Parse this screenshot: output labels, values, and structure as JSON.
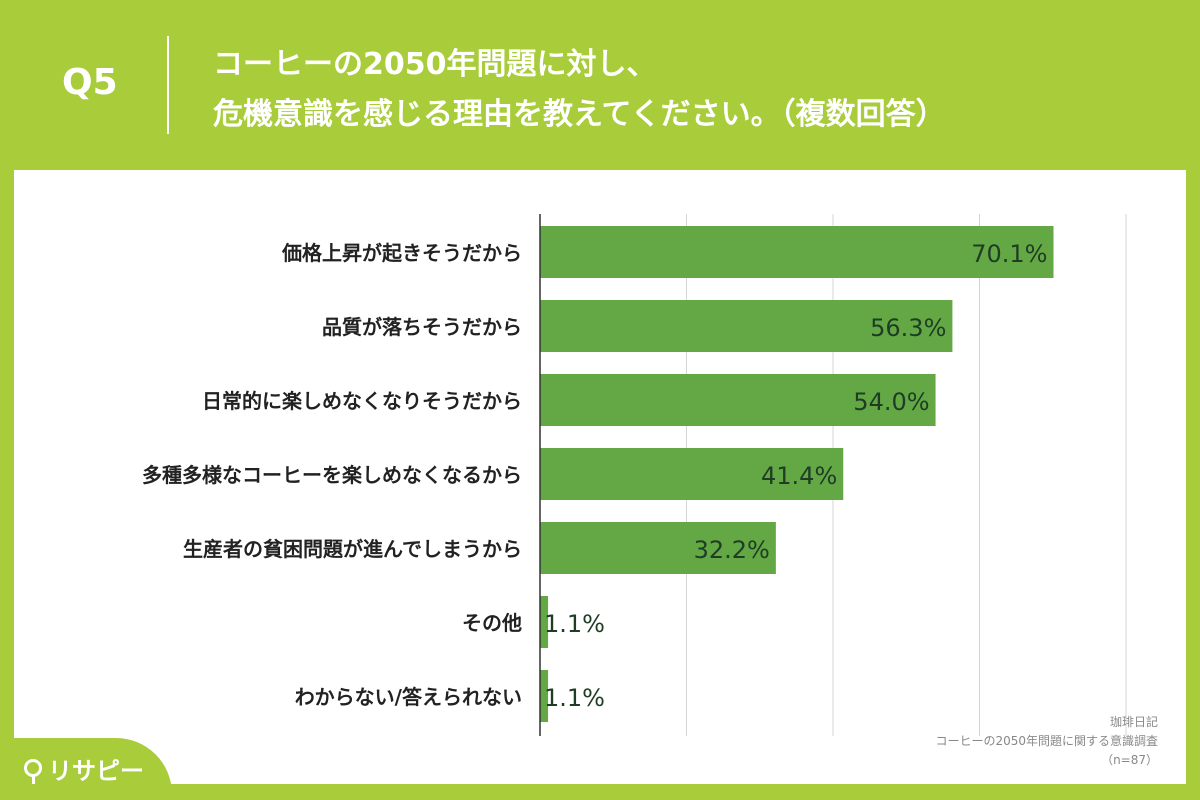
{
  "header": {
    "q_number": "Q5",
    "question_line1": "コーヒーの2050年問題に対し、",
    "question_line2": "危機意識を感じる理由を教えてください。（複数回答）"
  },
  "chart_data": {
    "type": "bar",
    "orientation": "horizontal",
    "categories": [
      "価格上昇が起きそうだから",
      "品質が落ちそうだから",
      "日常的に楽しめなくなりそうだから",
      "多種多様なコーヒーを楽しめなくなるから",
      "生産者の貧困問題が進んでしまうから",
      "その他",
      "わからない/答えられない"
    ],
    "values": [
      70.1,
      56.3,
      54.0,
      41.4,
      32.2,
      1.1,
      1.1
    ],
    "value_labels": [
      "70.1%",
      "56.3%",
      "54.0%",
      "41.4%",
      "32.2%",
      "1.1%",
      "1.1%"
    ],
    "title": "",
    "xlabel": "",
    "ylabel": "",
    "xlim": [
      0,
      80
    ],
    "grid_values": [
      0,
      20,
      40,
      60,
      80
    ],
    "grid": true,
    "legend": "none"
  },
  "colors": {
    "background": "#a8cc3a",
    "bar": "#63a844",
    "value_label": "#1e3d24",
    "category_label": "#222222",
    "grid": "#d5d5d5",
    "axis": "#333333"
  },
  "source": {
    "line1": "珈琲日記",
    "line2": "コーヒーの2050年問題に関する意識調査",
    "line3": "（n=87）"
  },
  "brand": {
    "logo_text": "リサピー"
  }
}
